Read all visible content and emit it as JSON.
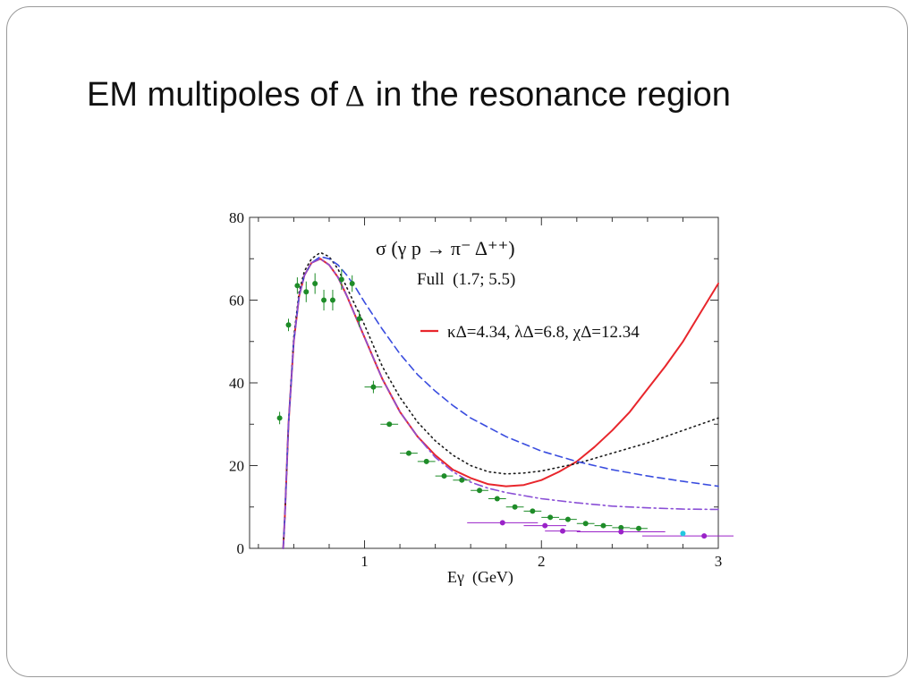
{
  "slide": {
    "title_prefix": "EM multipoles of",
    "title_symbol": "Δ",
    "title_suffix": "in the resonance region"
  },
  "chart_data": {
    "type": "line",
    "title": "σ (γ p → π⁻ Δ⁺⁺)",
    "subtitle": "Full  (1.7; 5.5)",
    "xlabel": "Eγ  (GeV)",
    "ylabel": "",
    "xlim": [
      0.35,
      3.0
    ],
    "ylim": [
      0,
      80
    ],
    "x_ticks": [
      1,
      2,
      3
    ],
    "x_tick_labels": [
      "1",
      "2",
      "3"
    ],
    "y_ticks": [
      0,
      20,
      40,
      60,
      80
    ],
    "y_tick_labels": [
      "0",
      "20",
      "40",
      "60",
      "80"
    ],
    "grid": false,
    "legend": [
      {
        "label": "κΔ=4.34, λΔ=6.8, χΔ=12.34",
        "color": "#e8262c",
        "style": "solid"
      }
    ],
    "series": [
      {
        "color": "#e8262c",
        "style": "solid",
        "x": [
          0.54,
          0.55,
          0.57,
          0.6,
          0.63,
          0.66,
          0.7,
          0.75,
          0.8,
          0.85,
          0.9,
          0.95,
          1.0,
          1.05,
          1.1,
          1.15,
          1.2,
          1.3,
          1.4,
          1.5,
          1.6,
          1.7,
          1.8,
          1.9,
          2.0,
          2.1,
          2.2,
          2.3,
          2.4,
          2.5,
          2.6,
          2.7,
          2.8,
          2.9,
          3.0
        ],
        "y": [
          0,
          8,
          30,
          50,
          61,
          66,
          69,
          70,
          68.5,
          65.5,
          61,
          56,
          51,
          46,
          41,
          37,
          33,
          27,
          22.5,
          19,
          17,
          15.5,
          15,
          15.3,
          16.5,
          18.5,
          21,
          24.5,
          28.5,
          33,
          38.5,
          44,
          50,
          57,
          64
        ]
      },
      {
        "color": "#1a1a1a",
        "style": "dotted",
        "x": [
          0.54,
          0.55,
          0.57,
          0.6,
          0.63,
          0.66,
          0.7,
          0.75,
          0.8,
          0.85,
          0.9,
          0.95,
          1.0,
          1.05,
          1.1,
          1.2,
          1.3,
          1.4,
          1.5,
          1.6,
          1.7,
          1.8,
          1.9,
          2.0,
          2.2,
          2.4,
          2.6,
          2.8,
          3.0
        ],
        "y": [
          0,
          8,
          30,
          51,
          62,
          67,
          70,
          71.5,
          70.5,
          67.5,
          63,
          58.5,
          54,
          49,
          44,
          36.5,
          30.5,
          26,
          22.5,
          20,
          18.5,
          18,
          18.2,
          18.7,
          20.5,
          23,
          25.5,
          28.5,
          31.5
        ]
      },
      {
        "color": "#3a4ddf",
        "style": "dashed",
        "x": [
          0.54,
          0.55,
          0.57,
          0.6,
          0.63,
          0.66,
          0.7,
          0.75,
          0.8,
          0.85,
          0.9,
          0.95,
          1.0,
          1.1,
          1.2,
          1.3,
          1.4,
          1.5,
          1.6,
          1.8,
          2.0,
          2.2,
          2.4,
          2.6,
          2.8,
          3.0
        ],
        "y": [
          0,
          8,
          30,
          50,
          61,
          66,
          69,
          70.5,
          70,
          68.5,
          66,
          63,
          59.5,
          53,
          47,
          42,
          38,
          34.5,
          31.5,
          27,
          23.5,
          21,
          19,
          17.5,
          16.2,
          15
        ]
      },
      {
        "color": "#8a4fd6",
        "style": "dashdot",
        "x": [
          0.54,
          0.55,
          0.57,
          0.6,
          0.63,
          0.66,
          0.7,
          0.75,
          0.8,
          0.85,
          0.9,
          0.95,
          1.0,
          1.05,
          1.1,
          1.2,
          1.3,
          1.4,
          1.5,
          1.6,
          1.7,
          1.8,
          2.0,
          2.2,
          2.4,
          2.6,
          2.8,
          3.0
        ],
        "y": [
          0,
          8,
          30,
          50,
          61,
          66,
          69,
          70,
          68.5,
          65.5,
          61,
          56,
          51,
          46,
          41,
          33,
          27,
          22,
          18.5,
          16,
          14.5,
          13.5,
          12,
          11,
          10.2,
          9.8,
          9.5,
          9.4
        ]
      }
    ],
    "data_points": [
      {
        "color": "#1e8c28",
        "x": [
          0.52,
          0.57,
          0.62,
          0.67,
          0.72,
          0.77,
          0.82,
          0.87,
          0.93,
          0.97,
          1.05,
          1.14,
          1.25,
          1.35,
          1.45,
          1.55,
          1.65,
          1.75,
          1.85,
          1.95,
          2.05,
          2.15,
          2.25,
          2.35,
          2.45,
          2.55
        ],
        "y": [
          31.5,
          54,
          63.5,
          62,
          64,
          60,
          60,
          65,
          64,
          55.5,
          39,
          30,
          23,
          21,
          17.5,
          16.5,
          14,
          12,
          10,
          9,
          7.5,
          7,
          6,
          5.5,
          5,
          4.8
        ],
        "xerr": [
          0,
          0,
          0,
          0,
          0,
          0,
          0,
          0,
          0,
          0,
          0.05,
          0.05,
          0.05,
          0.05,
          0.05,
          0.05,
          0.05,
          0.05,
          0.05,
          0.05,
          0.05,
          0.05,
          0.05,
          0.05,
          0.05,
          0.05
        ],
        "yerr": [
          1.5,
          1.5,
          2,
          2.5,
          2.5,
          2.5,
          2.5,
          2.5,
          2,
          2,
          1.5,
          0.6,
          0.6,
          0.6,
          0.5,
          0.5,
          0.5,
          0.5,
          0.4,
          0.4,
          0.4,
          0.4,
          0.3,
          0.3,
          0.3,
          0.3
        ]
      },
      {
        "color": "#9a22c8",
        "x": [
          1.78,
          2.02,
          2.12,
          2.45,
          2.92
        ],
        "y": [
          6.2,
          5.5,
          4.2,
          4.0,
          3.0
        ],
        "xerr": [
          0.2,
          0.12,
          0.1,
          0.25,
          0.35
        ],
        "yerr": [
          0.6,
          0.5,
          0.4,
          0.4,
          0.3
        ]
      },
      {
        "color": "#22c8e0",
        "x": [
          2.8
        ],
        "y": [
          3.6
        ],
        "xerr": [
          0
        ],
        "yerr": [
          0.4
        ]
      }
    ]
  }
}
